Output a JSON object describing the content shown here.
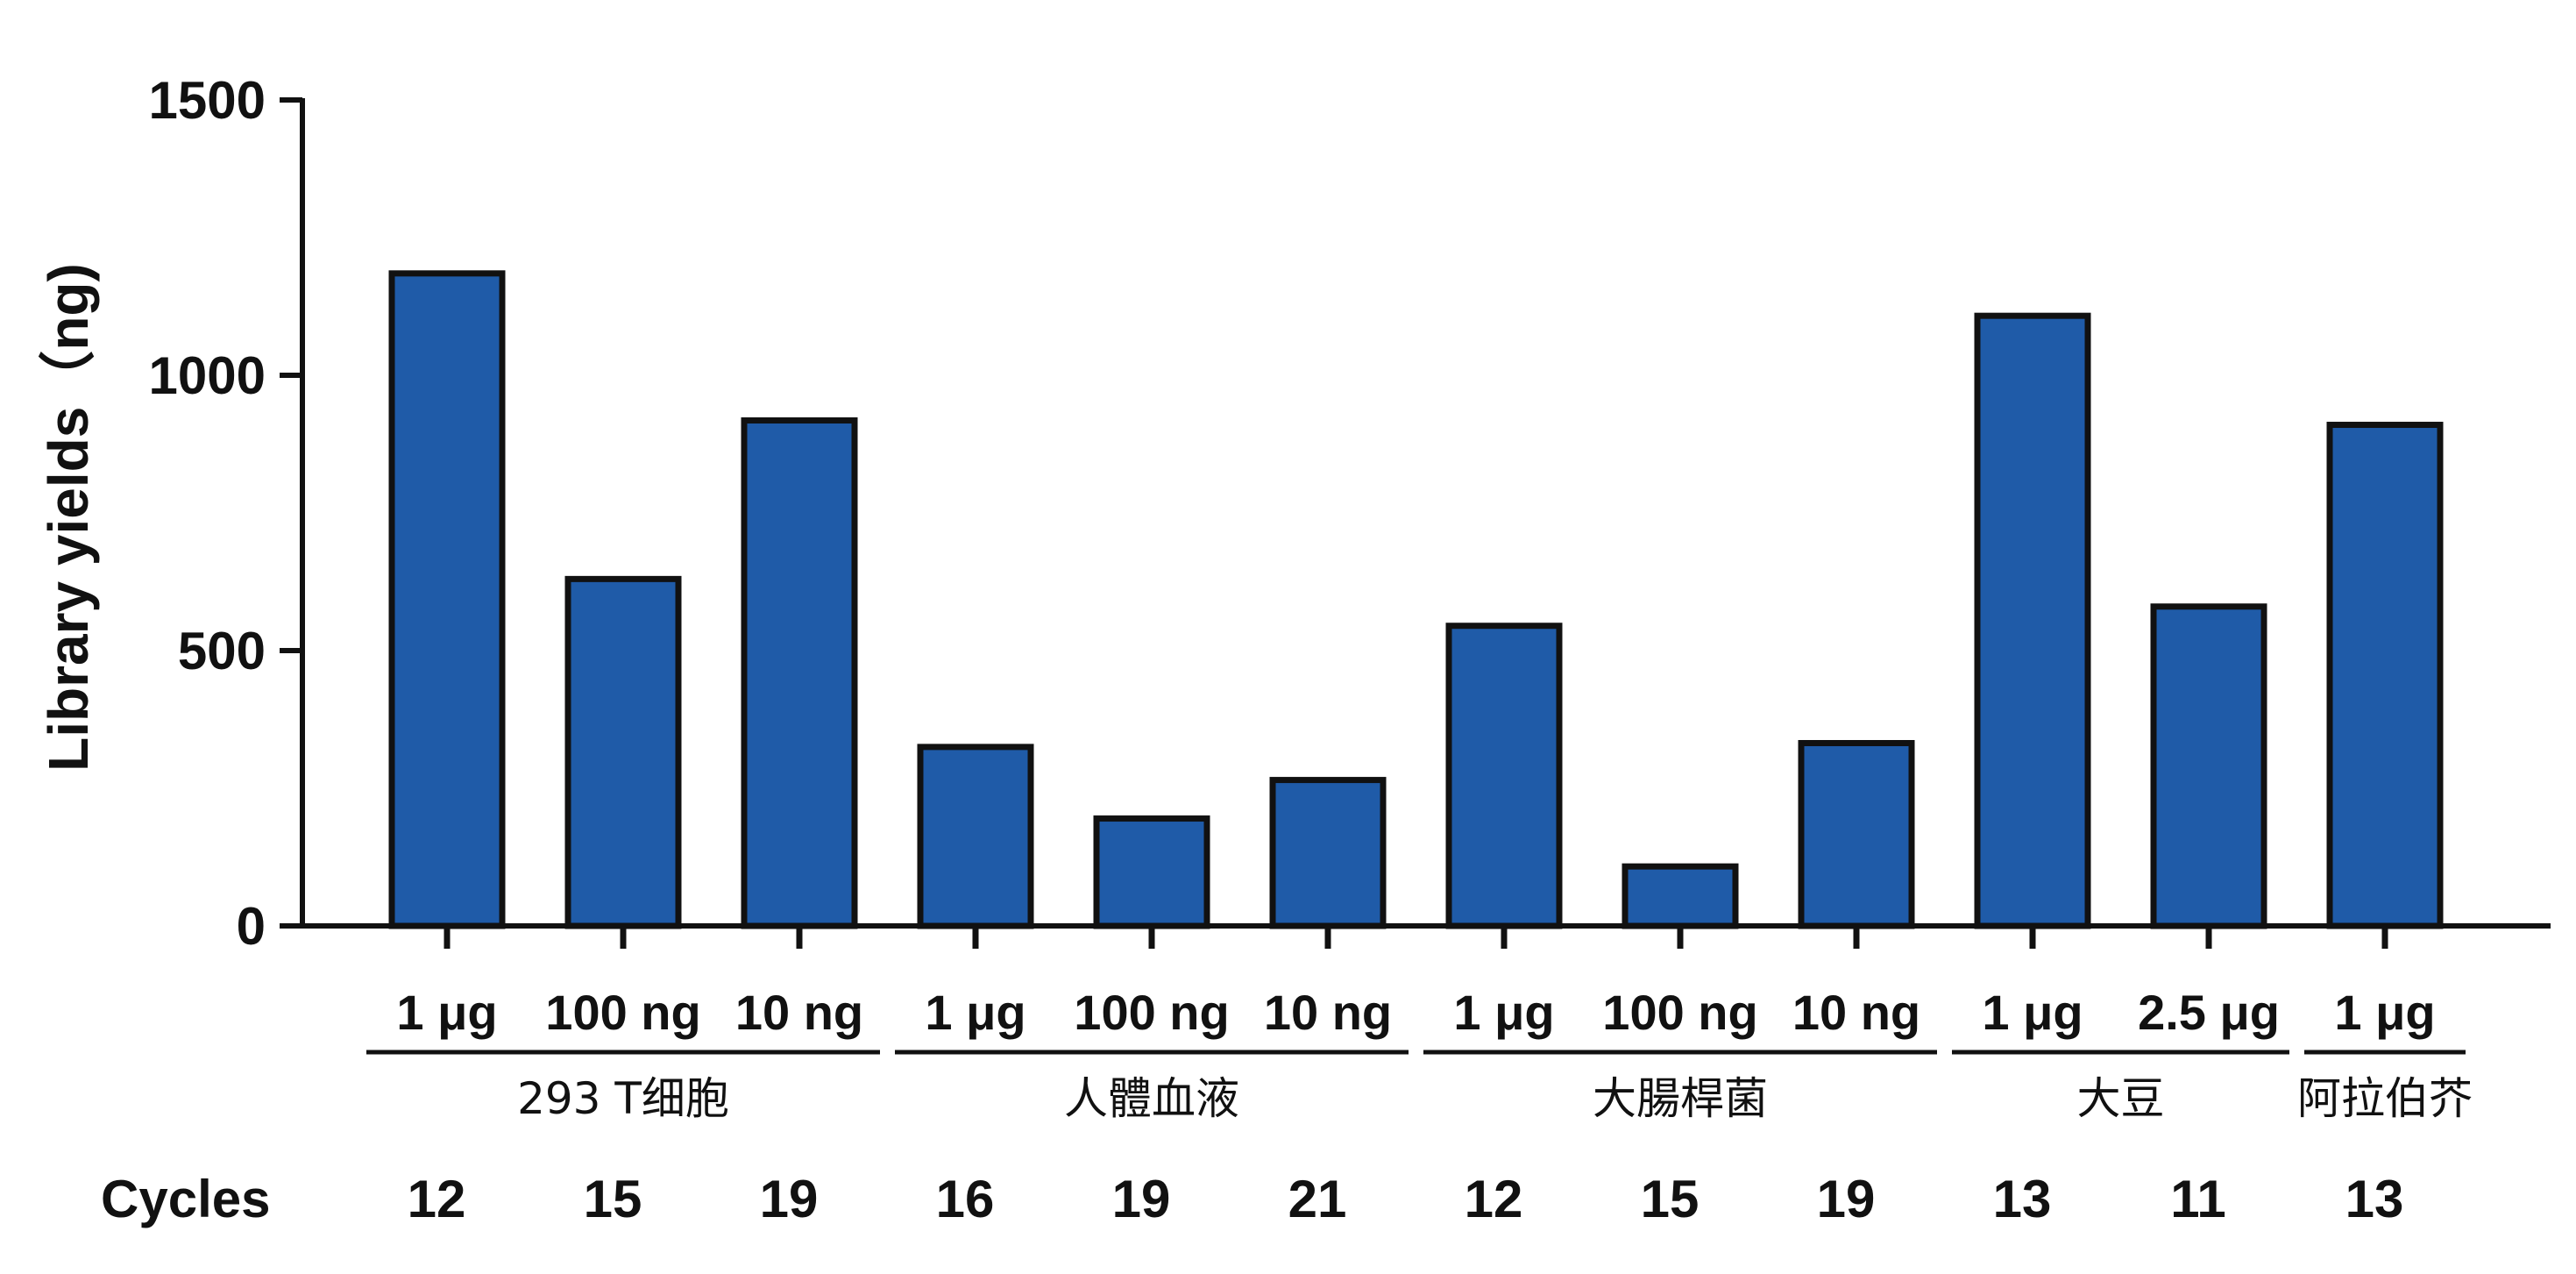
{
  "chart_data": {
    "type": "bar",
    "ylabel": "Library yields（ng)",
    "ylim": [
      0,
      1500
    ],
    "yticks": [
      0,
      500,
      1000,
      1500
    ],
    "grid": false,
    "bar_color": "#1f5ba8",
    "edge_color": "#111111",
    "bars": [
      {
        "amount": "1 μg",
        "group": "293  T细胞",
        "cycles": "12",
        "value": 1185
      },
      {
        "amount": "100 ng",
        "group": "293  T细胞",
        "cycles": "15",
        "value": 630
      },
      {
        "amount": "10 ng",
        "group": "293  T细胞",
        "cycles": "19",
        "value": 918
      },
      {
        "amount": "1 μg",
        "group": "人體血液",
        "cycles": "16",
        "value": 325
      },
      {
        "amount": "100 ng",
        "group": "人體血液",
        "cycles": "19",
        "value": 195
      },
      {
        "amount": "10 ng",
        "group": "人體血液",
        "cycles": "21",
        "value": 265
      },
      {
        "amount": "1 μg",
        "group": "大腸桿菌",
        "cycles": "12",
        "value": 545
      },
      {
        "amount": "100 ng",
        "group": "大腸桿菌",
        "cycles": "15",
        "value": 108
      },
      {
        "amount": "10 ng",
        "group": "大腸桿菌",
        "cycles": "19",
        "value": 332
      },
      {
        "amount": "1 μg",
        "group": "大豆",
        "cycles": "13",
        "value": 1108
      },
      {
        "amount": "2.5 μg",
        "group": "大豆",
        "cycles": "11",
        "value": 580
      },
      {
        "amount": "1 μg",
        "group": "阿拉伯芥",
        "cycles": "13",
        "value": 910
      }
    ],
    "groups": [
      {
        "name": "293  T细胞",
        "start": 0,
        "end": 2
      },
      {
        "name": "人體血液",
        "start": 3,
        "end": 5
      },
      {
        "name": "大腸桿菌",
        "start": 6,
        "end": 8
      },
      {
        "name": "大豆",
        "start": 9,
        "end": 10
      },
      {
        "name": "阿拉伯芥",
        "start": 11,
        "end": 11
      }
    ],
    "cycles_label": "Cycles"
  }
}
